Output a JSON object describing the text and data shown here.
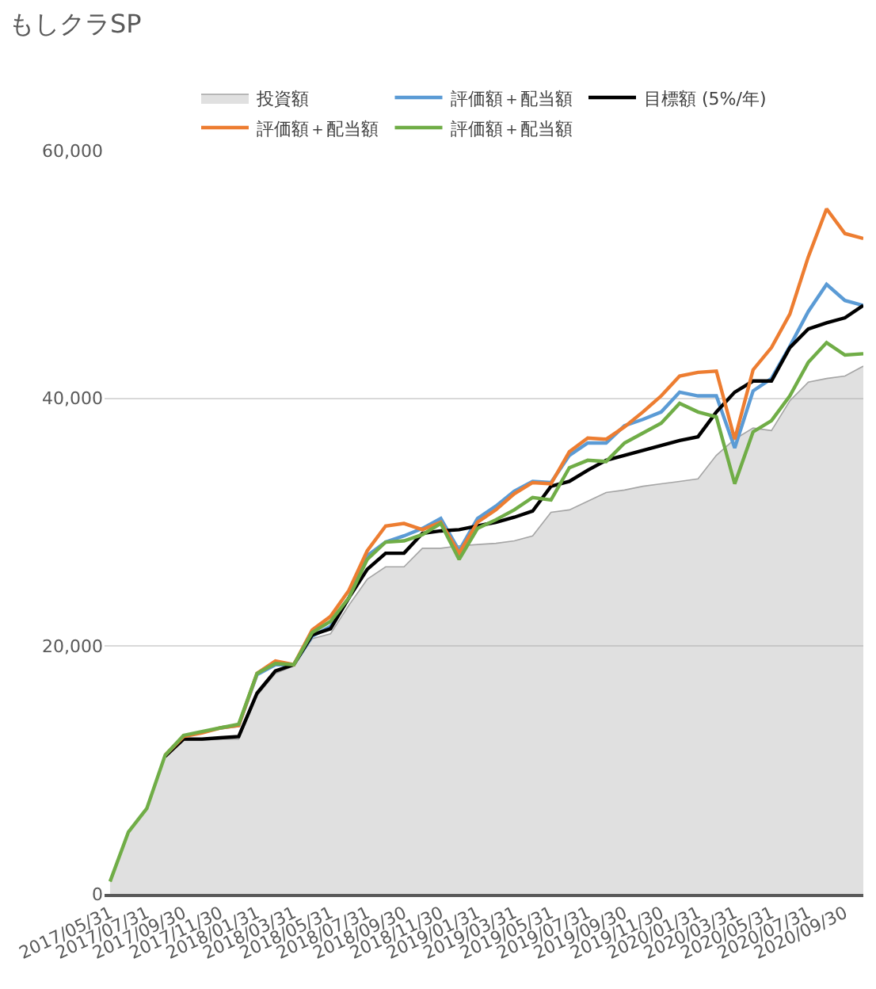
{
  "chart_data": {
    "type": "line",
    "title": "もしクラSP",
    "categories": [
      "2017/05/31",
      null,
      "2017/07/31",
      null,
      "2017/09/30",
      null,
      "2017/11/30",
      null,
      "2018/01/31",
      null,
      "2018/03/31",
      null,
      "2018/05/31",
      null,
      "2018/07/31",
      null,
      "2018/09/30",
      null,
      "2018/11/30",
      null,
      "2019/01/31",
      null,
      "2019/03/31",
      null,
      "2019/05/31",
      null,
      "2019/07/31",
      null,
      "2019/09/30",
      null,
      "2019/11/30",
      null,
      "2020/01/31",
      null,
      "2020/03/31",
      null,
      "2020/05/31",
      null,
      "2020/07/31",
      null,
      "2020/09/30",
      null
    ],
    "series": [
      {
        "name": "投資額",
        "type": "area",
        "color": "#a5a5a5",
        "values": [
          1000,
          5000,
          6800,
          11100,
          12400,
          12400,
          12500,
          12500,
          16000,
          17800,
          18400,
          20600,
          21000,
          23300,
          25400,
          26400,
          26400,
          27900,
          27900,
          28100,
          28200,
          28300,
          28500,
          28900,
          30800,
          31000,
          31700,
          32400,
          32600,
          32900,
          33100,
          33300,
          33500,
          35400,
          36700,
          37600,
          37400,
          39800,
          41300,
          41600,
          41800,
          42600
        ]
      },
      {
        "name": "評価額＋配当額",
        "color": "#5b9bd5",
        "values": [
          null,
          null,
          null,
          null,
          null,
          null,
          13400,
          13600,
          17700,
          18500,
          18500,
          20800,
          21600,
          23900,
          27300,
          28400,
          28900,
          29500,
          30300,
          27700,
          30300,
          31300,
          32500,
          33300,
          33200,
          35400,
          36400,
          36400,
          37800,
          38300,
          38900,
          40500,
          40200,
          40200,
          36000,
          40600,
          41600,
          44200,
          47000,
          49200,
          47900,
          47500
        ]
      },
      {
        "name": "目標額 (5%/年)",
        "color": "#000000",
        "values": [
          null,
          null,
          null,
          11100,
          12500,
          12500,
          12600,
          12700,
          16200,
          18000,
          18500,
          20900,
          21400,
          23900,
          26200,
          27500,
          27500,
          29100,
          29300,
          29400,
          29700,
          30000,
          30400,
          30900,
          32900,
          33300,
          34200,
          35000,
          35400,
          35800,
          36200,
          36600,
          36900,
          38900,
          40500,
          41400,
          41400,
          44100,
          45600,
          46100,
          46500,
          47500
        ]
      },
      {
        "name": "評価額＋配当額",
        "color": "#ed7d31",
        "values": [
          null,
          null,
          null,
          11200,
          12700,
          13000,
          13400,
          13600,
          17800,
          18800,
          18500,
          21300,
          22400,
          24500,
          27700,
          29700,
          29900,
          29400,
          30000,
          27500,
          30000,
          31000,
          32300,
          33200,
          33100,
          35700,
          36800,
          36700,
          37700,
          38900,
          40200,
          41800,
          42100,
          42200,
          36700,
          42300,
          44100,
          46800,
          51400,
          55300,
          53300,
          52900
        ]
      },
      {
        "name": "評価額＋配当額",
        "color": "#70ad47",
        "values": [
          1000,
          5000,
          6900,
          11200,
          12800,
          13100,
          13400,
          13700,
          17800,
          18600,
          18500,
          21100,
          22000,
          23900,
          27000,
          28400,
          28500,
          29000,
          29900,
          27000,
          29500,
          30200,
          31000,
          32000,
          31800,
          34400,
          35000,
          34900,
          36400,
          37200,
          38000,
          39600,
          38900,
          38500,
          33100,
          37300,
          38200,
          40200,
          42900,
          44500,
          43500,
          43600
        ]
      }
    ],
    "ylim": [
      0,
      60000
    ],
    "yticks": [
      0,
      {
        "value": 20000,
        "label": "20,000"
      },
      {
        "value": 40000,
        "label": "40,000"
      },
      {
        "value": 60000,
        "label": "60,000"
      }
    ],
    "grid": "y",
    "legend": "top",
    "marker": "none",
    "line_style": "solid"
  }
}
